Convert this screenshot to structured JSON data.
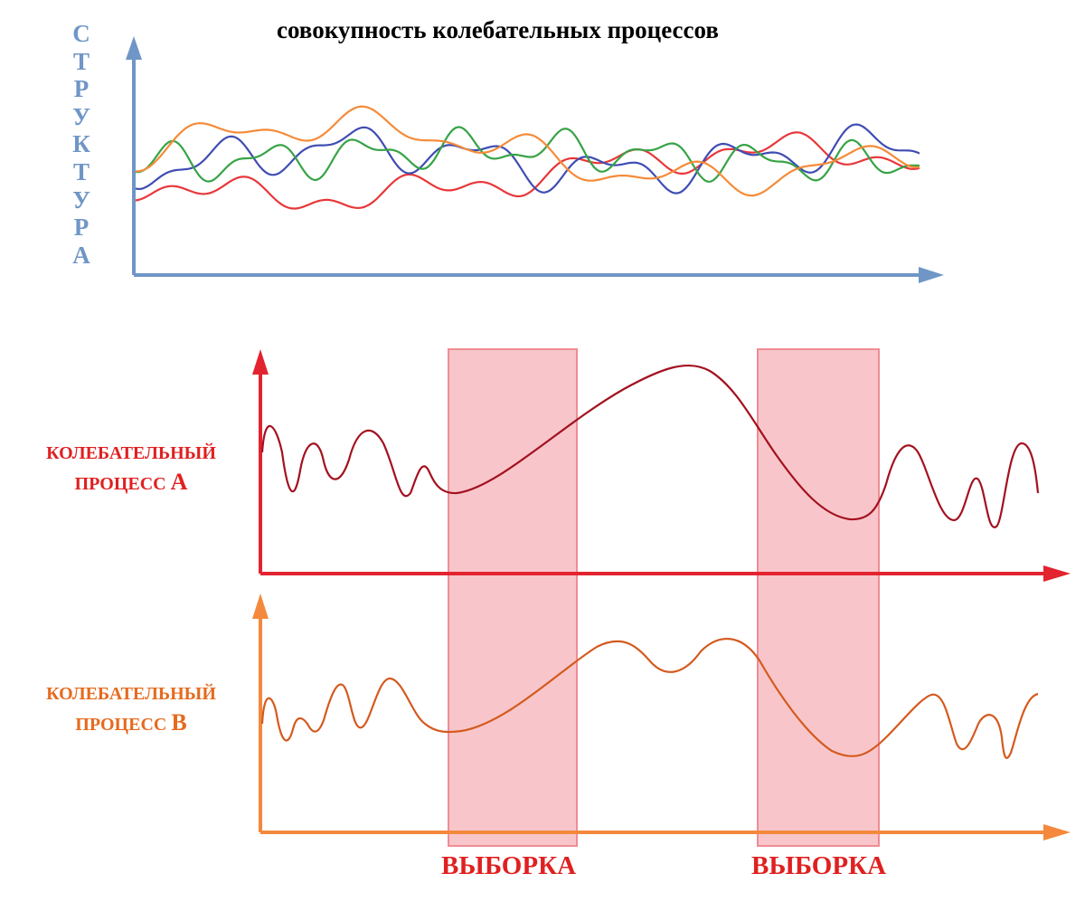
{
  "title": "совокупность колебательных процессов",
  "y_axis_label": "СТРУКТУРА",
  "process_a": {
    "line1": "КОЛЕБАТЕЛЬНЫЙ",
    "line2": "ПРОЦЕСС",
    "letter": "А"
  },
  "process_b": {
    "line1": "КОЛЕБАТЕЛЬНЫЙ",
    "line2": "ПРОЦЕСС",
    "letter": "В"
  },
  "samples": [
    {
      "label": "ВЫБОРКА"
    },
    {
      "label": "ВЫБОРКА"
    }
  ],
  "colors": {
    "structure_axis": "#6f96c6",
    "process_a_axis": "#e3232f",
    "process_b_axis": "#f4893d",
    "process_a_curve": "#a3111f",
    "process_b_curve": "#d45a1f",
    "sample_fill": "#f6b3b8",
    "sample_border": "#f08c95",
    "label_red": "#e02020",
    "label_orange": "#e66a1e",
    "series": [
      "#e8373a",
      "#3f4db3",
      "#37a346",
      "#f58b39"
    ]
  }
}
